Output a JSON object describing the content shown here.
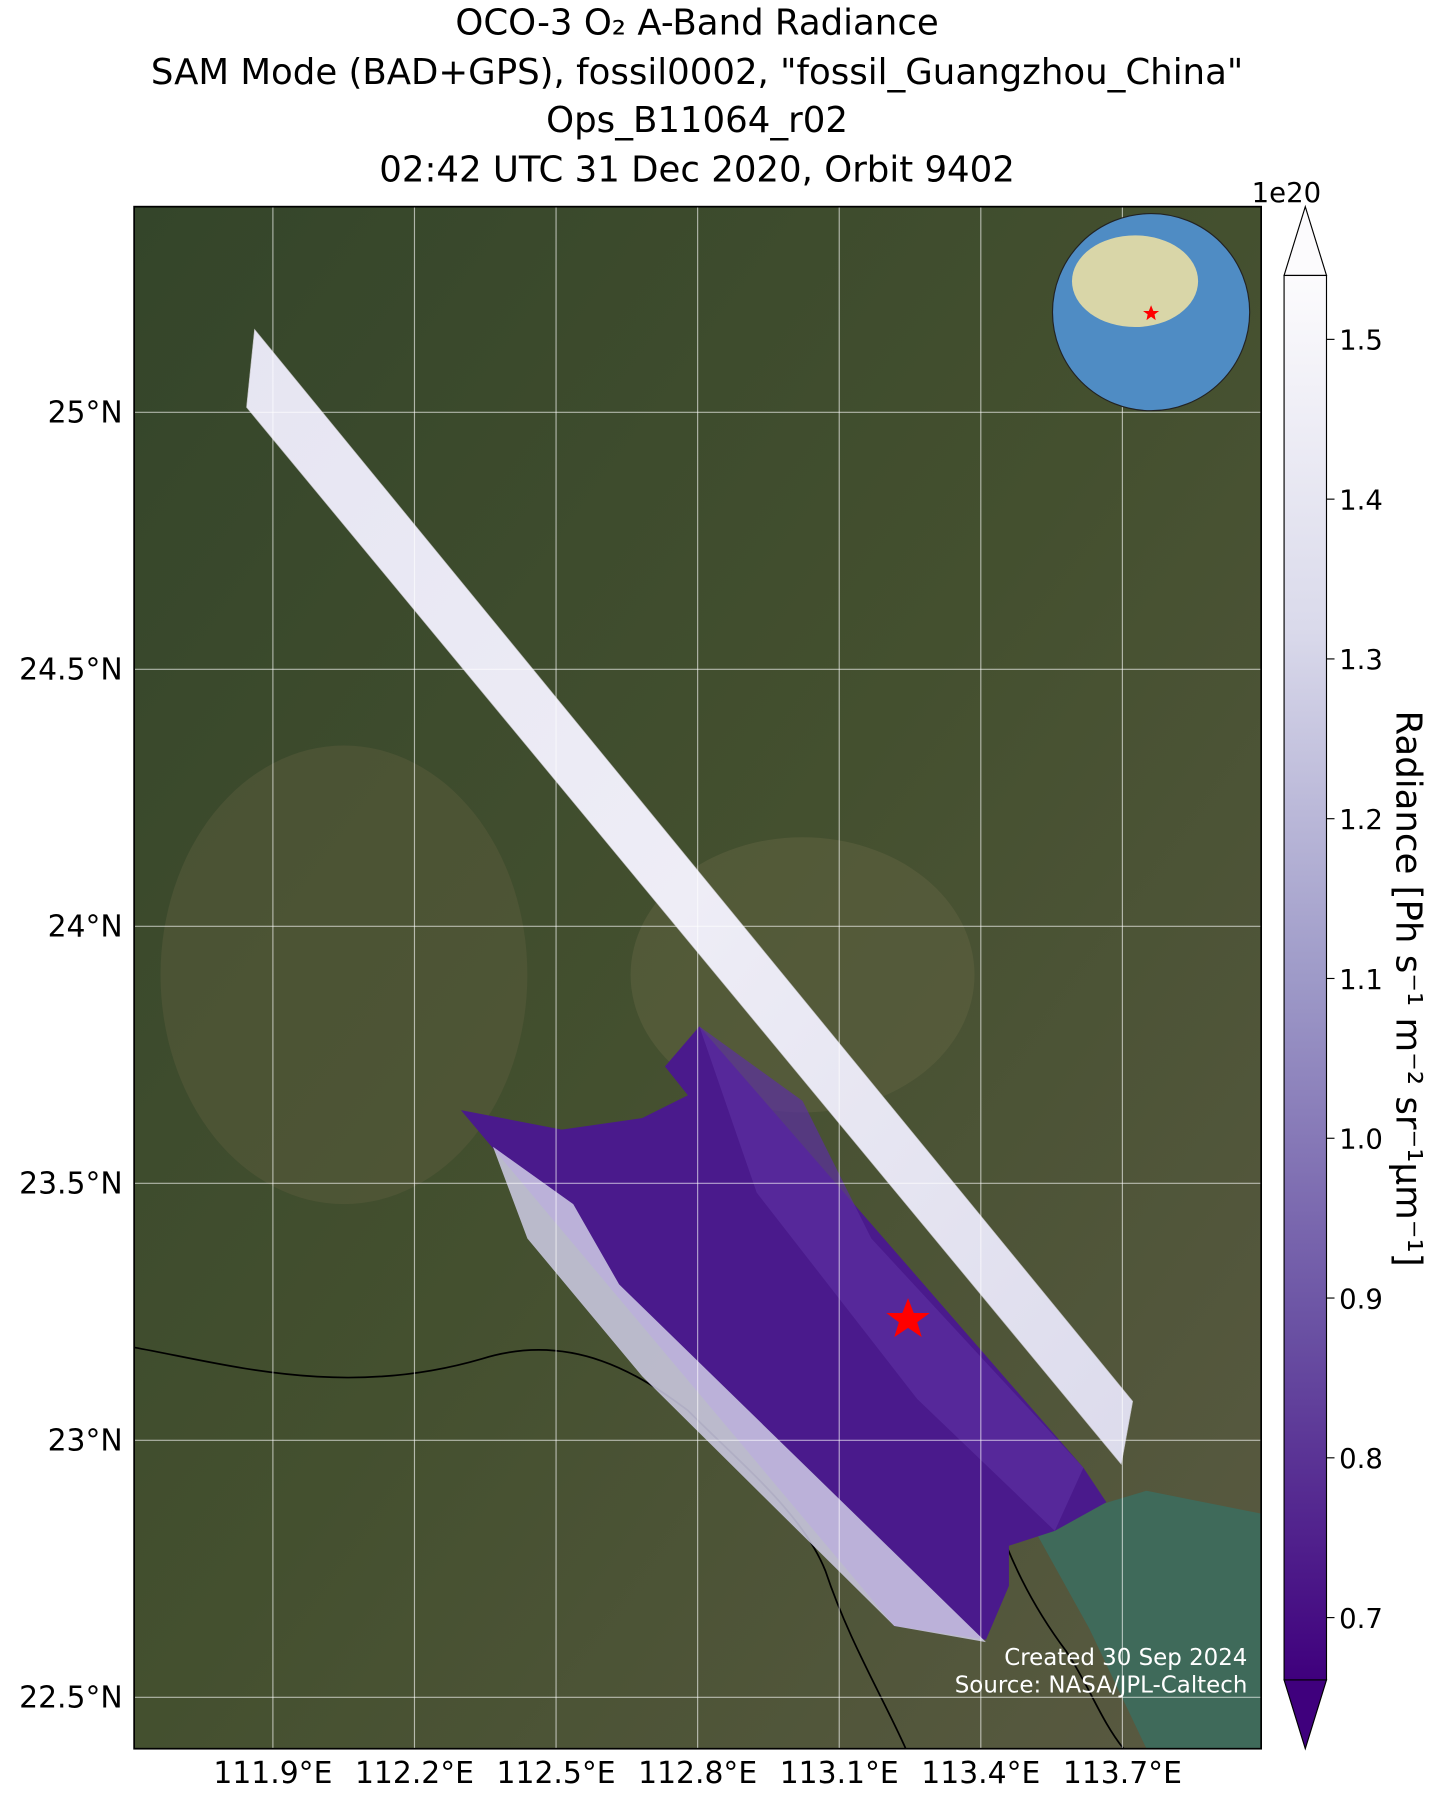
{
  "chart_data": {
    "type": "map",
    "title": [
      "OCO-3 O₂ A-Band Radiance",
      "SAM Mode (BAD+GPS), fossil0002, \"fossil_Guangzhou_China\"",
      "Ops_B11064_r02",
      "02:42 UTC 31 Dec 2020, Orbit 9402"
    ],
    "xlim": [
      111.606,
      113.994
    ],
    "xticks": [
      {
        "value": 111.9,
        "label": "111.9°E"
      },
      {
        "value": 112.2,
        "label": "112.2°E"
      },
      {
        "value": 112.5,
        "label": "112.5°E"
      },
      {
        "value": 112.8,
        "label": "112.8°E"
      },
      {
        "value": 113.1,
        "label": "113.1°E"
      },
      {
        "value": 113.4,
        "label": "113.4°E"
      },
      {
        "value": 113.7,
        "label": "113.7°E"
      }
    ],
    "ylim": [
      22.4,
      25.4
    ],
    "yticks": [
      {
        "value": 22.5,
        "label": "22.5°N"
      },
      {
        "value": 23,
        "label": "23°N"
      },
      {
        "value": 23.5,
        "label": "23.5°N"
      },
      {
        "value": 24,
        "label": "24°N"
      },
      {
        "value": 24.5,
        "label": "24.5°N"
      },
      {
        "value": 25,
        "label": "25°N"
      }
    ],
    "grid": true,
    "colorbar": {
      "label": "Radiance [Ph s⁻¹ m⁻² sr⁻¹μm⁻¹]",
      "multiplier": "1e20",
      "clim": [
        0.661,
        1.54
      ],
      "ticks": [
        0.7,
        0.8,
        0.9,
        {
          "value": 1,
          "label": "1.0"
        },
        1.1,
        1.2,
        1.3,
        1.4,
        1.5
      ],
      "colors": [
        "#3f007d",
        "#6a51a3",
        "#9e9ac8",
        "#dadaeb",
        "#fcfbfd"
      ]
    },
    "credits": [
      "Created 30 Sep 2024",
      "Source: NASA/JPL-Caltech"
    ]
  }
}
